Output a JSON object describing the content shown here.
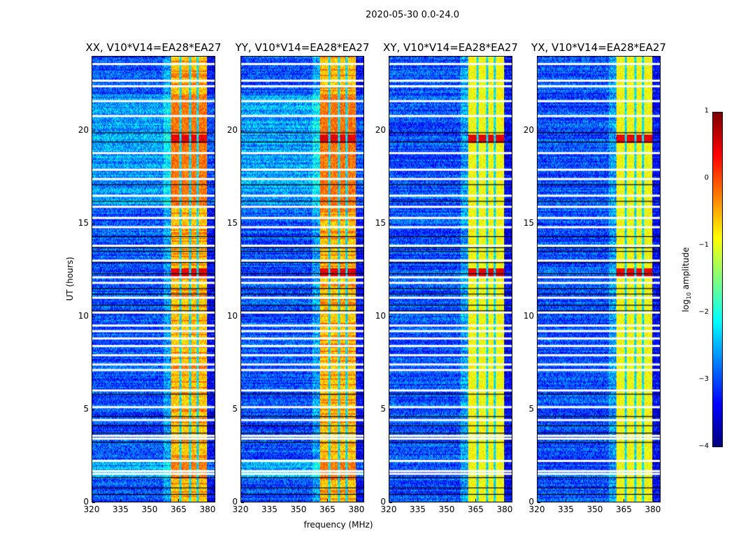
{
  "chart_data": {
    "type": "heatmap",
    "title": "2020-05-30 0.0-24.0",
    "xlabel": "frequency (MHz)",
    "ylabel": "UT (hours)",
    "xlim": [
      320,
      384
    ],
    "ylim": [
      0,
      24
    ],
    "xticks": [
      "320",
      "335",
      "350",
      "365",
      "380"
    ],
    "xtick_values": [
      320,
      335,
      350,
      365,
      380
    ],
    "yticks": [
      "0",
      "5",
      "10",
      "15",
      "20"
    ],
    "ytick_values": [
      0,
      5,
      10,
      15,
      20
    ],
    "panels": [
      {
        "title": "XX, V10*V14=EA28*EA27"
      },
      {
        "title": "YY, V10*V14=EA28*EA27"
      },
      {
        "title": "XY, V10*V14=EA28*EA27"
      },
      {
        "title": "YX, V10*V14=EA28*EA27"
      }
    ],
    "colormap": "jet",
    "colorbar": {
      "label_main": "log",
      "label_sub": "10",
      "label_rest": " amplitude",
      "range": [
        -4,
        1
      ],
      "ticks": [
        "1",
        "0",
        "−1",
        "−2",
        "−3",
        "−4"
      ],
      "tick_values": [
        1,
        0,
        -1,
        -2,
        -3,
        -4
      ]
    },
    "rfi_band_mhz": [
      361,
      380
    ],
    "band_dividers_mhz": [
      366,
      371,
      375
    ],
    "flagged_hours_white": [
      1.5,
      1.65,
      2.2,
      3.4,
      3.55,
      4.4,
      5.1,
      6.0,
      7.1,
      7.4,
      7.9,
      8.4,
      8.8,
      9.2,
      9.5,
      10.2,
      11.0,
      11.8,
      12.1,
      13.0,
      13.8,
      14.8,
      15.3,
      15.9,
      16.5,
      17.4,
      17.9,
      18.8,
      20.8,
      21.6,
      22.4,
      22.7,
      23.6
    ],
    "flagged_hours_black": [
      0.4,
      0.75,
      1.3,
      3.2,
      3.7,
      4.1,
      4.6,
      5.8,
      10.3,
      10.6,
      11.2,
      11.5,
      12.3,
      12.9,
      13.5,
      13.7,
      14.3,
      16.2,
      17.1,
      19.4,
      19.9
    ],
    "mean_log_amp": {
      "background": -3.0,
      "rfi_band": -0.6,
      "rfi_strong_hours": [
        12.4,
        19.6
      ]
    }
  }
}
